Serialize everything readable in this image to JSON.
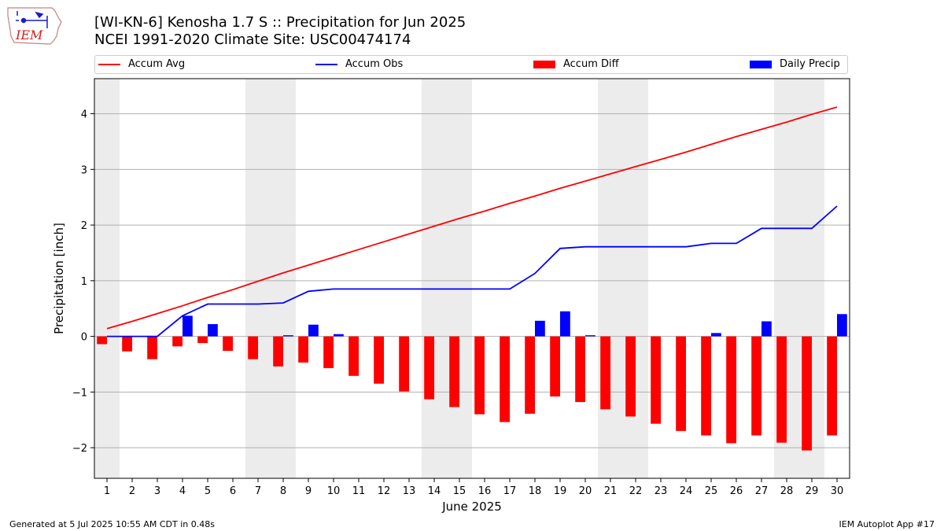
{
  "header": {
    "logo_text": "IEM",
    "title_line1": "[WI-KN-6] Kenosha 1.7 S :: Precipitation for Jun 2025",
    "title_line2": "NCEI 1991-2020 Climate Site: USC00474174"
  },
  "legend": [
    {
      "label": "Accum Avg",
      "color": "#ff0000",
      "kind": "line"
    },
    {
      "label": "Accum Obs",
      "color": "#0000ff",
      "kind": "line"
    },
    {
      "label": "Accum Diff",
      "color": "#ff0000",
      "kind": "bar"
    },
    {
      "label": "Daily Precip",
      "color": "#0000ff",
      "kind": "bar"
    }
  ],
  "footer": {
    "left": "Generated at 5 Jul 2025 10:55 AM CDT in 0.48s",
    "right": "IEM Autoplot App #17"
  },
  "chart_data": {
    "type": "bar",
    "xlabel": "June 2025",
    "ylabel": "Precipitation [inch]",
    "xlim": [
      0.5,
      30.5
    ],
    "ylim": [
      -2.55,
      4.63
    ],
    "yticks": [
      -2,
      -1,
      0,
      1,
      2,
      3,
      4
    ],
    "ytick_labels": [
      "−2",
      "−1",
      "0",
      "1",
      "2",
      "3",
      "4"
    ],
    "grid": "horizontal",
    "legend_position": "top",
    "weekend_shading": [
      [
        0.5,
        1.5
      ],
      [
        6.5,
        8.5
      ],
      [
        13.5,
        15.5
      ],
      [
        20.5,
        22.5
      ],
      [
        27.5,
        29.5
      ]
    ],
    "categories": [
      "1",
      "2",
      "3",
      "4",
      "5",
      "6",
      "7",
      "8",
      "9",
      "10",
      "11",
      "12",
      "13",
      "14",
      "15",
      "16",
      "17",
      "18",
      "19",
      "20",
      "21",
      "22",
      "23",
      "24",
      "25",
      "26",
      "27",
      "28",
      "29",
      "30"
    ],
    "series": [
      {
        "name": "Accum Avg",
        "kind": "line",
        "color": "#ff0000",
        "values": [
          0.14,
          0.27,
          0.41,
          0.55,
          0.7,
          0.84,
          0.99,
          1.14,
          1.28,
          1.42,
          1.56,
          1.7,
          1.84,
          1.98,
          2.12,
          2.25,
          2.39,
          2.52,
          2.66,
          2.79,
          2.92,
          3.05,
          3.18,
          3.31,
          3.45,
          3.59,
          3.72,
          3.85,
          3.99,
          4.12
        ]
      },
      {
        "name": "Accum Obs",
        "kind": "line",
        "color": "#0000ff",
        "values": [
          0.0,
          0.0,
          0.0,
          0.37,
          0.58,
          0.58,
          0.58,
          0.6,
          0.81,
          0.85,
          0.85,
          0.85,
          0.85,
          0.85,
          0.85,
          0.85,
          0.85,
          1.13,
          1.58,
          1.61,
          1.61,
          1.61,
          1.61,
          1.61,
          1.67,
          1.67,
          1.94,
          1.94,
          1.94,
          2.34
        ]
      },
      {
        "name": "Accum Diff",
        "kind": "bar",
        "color": "#ff0000",
        "values": [
          -0.14,
          -0.27,
          -0.41,
          -0.18,
          -0.12,
          -0.26,
          -0.41,
          -0.54,
          -0.47,
          -0.57,
          -0.71,
          -0.85,
          -0.99,
          -1.13,
          -1.27,
          -1.4,
          -1.54,
          -1.39,
          -1.08,
          -1.18,
          -1.31,
          -1.44,
          -1.57,
          -1.7,
          -1.78,
          -1.92,
          -1.78,
          -1.91,
          -2.05,
          -1.78
        ]
      },
      {
        "name": "Daily Precip",
        "kind": "bar",
        "color": "#0000ff",
        "values": [
          0,
          0,
          0,
          0.37,
          0.22,
          0,
          0,
          0.02,
          0.21,
          0.04,
          0,
          0,
          0,
          0,
          0,
          0,
          0,
          0.28,
          0.45,
          0.02,
          0,
          0,
          0,
          0,
          0.06,
          0,
          0.27,
          0,
          0,
          0.4
        ]
      }
    ]
  }
}
